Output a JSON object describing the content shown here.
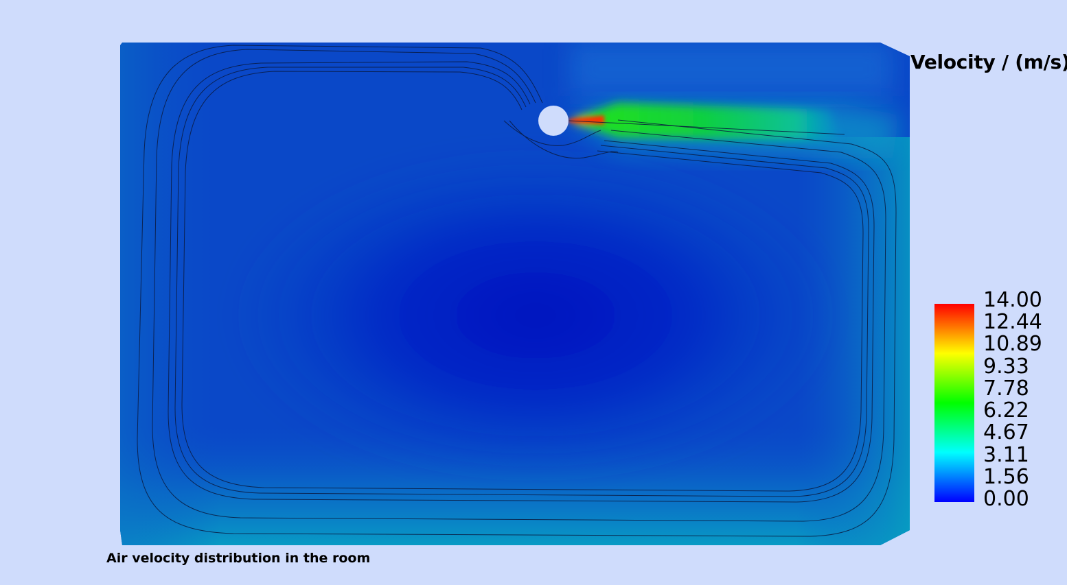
{
  "figure": {
    "caption": "Air velocity distribution in the room",
    "legend_title": "Velocity / (m/s)",
    "legend_ticks": [
      "14.00",
      "12.44",
      "10.89",
      "9.33",
      "7.78",
      "6.22",
      "4.67",
      "3.11",
      "1.56",
      "0.00"
    ],
    "scale_min": 0.0,
    "scale_max": 14.0,
    "colormap": [
      "#0000ff",
      "#00ffff",
      "#00ff00",
      "#ffff00",
      "#ff0000"
    ],
    "background": "#cfdcfc",
    "domain_color": "#0a44c8",
    "inlet_color": "#cfdcfc",
    "streamline_color": "#0a1a40"
  }
}
